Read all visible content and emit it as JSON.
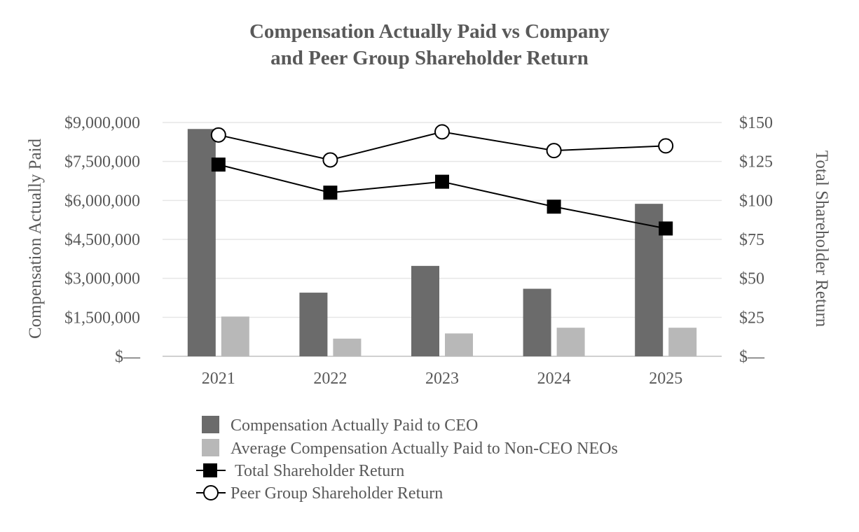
{
  "chart_data": {
    "type": "bar+line",
    "title": [
      "Compensation Actually Paid vs Company",
      "and Peer Group Shareholder Return"
    ],
    "categories": [
      "2021",
      "2022",
      "2023",
      "2024",
      "2025"
    ],
    "y_left": {
      "label": "Compensation Actually Paid",
      "ylim": [
        0,
        9000000
      ],
      "ticks": [
        0,
        1500000,
        3000000,
        4500000,
        6000000,
        7500000,
        9000000
      ],
      "tick_labels": [
        "$—",
        "$1,500,000",
        "$3,000,000",
        "$4,500,000",
        "$6,000,000",
        "$7,500,000",
        "$9,000,000"
      ]
    },
    "y_right": {
      "label": "Total Shareholder Return",
      "ylim": [
        0,
        150
      ],
      "ticks": [
        0,
        25,
        50,
        75,
        100,
        125,
        150
      ],
      "tick_labels": [
        "$—",
        "$25",
        "$50",
        "$75",
        "$100",
        "$125",
        "$150"
      ]
    },
    "grid": true,
    "legend_position": "bottom",
    "series": [
      {
        "name": "Compensation Actually Paid to CEO",
        "type": "bar",
        "axis": "left",
        "color": "#6b6b6b",
        "values": [
          8750000,
          2450000,
          3480000,
          2600000,
          5870000
        ]
      },
      {
        "name": "Average Compensation Actually Paid to Non-CEO NEOs",
        "type": "bar",
        "axis": "left",
        "color": "#b8b8b8",
        "values": [
          1530000,
          680000,
          880000,
          1100000,
          1100000
        ]
      },
      {
        "name": "Total Shareholder Return",
        "type": "line",
        "marker": "square",
        "axis": "right",
        "color": "#000000",
        "values": [
          123,
          105,
          112,
          96,
          82
        ]
      },
      {
        "name": "Peer Group Shareholder Return",
        "type": "line",
        "marker": "circle",
        "axis": "right",
        "color": "#000000",
        "values": [
          142,
          126,
          144,
          132,
          135
        ]
      }
    ]
  }
}
